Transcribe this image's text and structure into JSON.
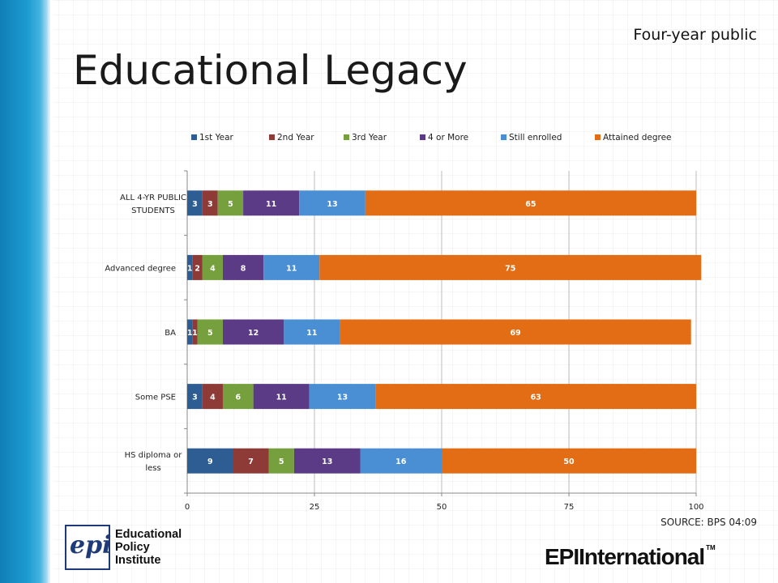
{
  "slide": {
    "title": "Educational Legacy",
    "subtitle": "Four-year public",
    "source": "SOURCE: BPS 04:09",
    "logo_left": {
      "mark_text": "epi",
      "lines": [
        "Educational",
        "Policy",
        "Institute"
      ]
    },
    "logo_right": {
      "epi": "EPI",
      "international": "International",
      "tm": "TM"
    },
    "colors": {
      "stripe": "#1d9bd1",
      "logo_blue": "#1e3a78"
    }
  },
  "chart_data": {
    "type": "bar",
    "orientation": "horizontal",
    "stacked": true,
    "categories": [
      "ALL 4-YR PUBLIC STUDENTS",
      "Advanced degree",
      "BA",
      "Some PSE",
      "HS diploma or less"
    ],
    "series": [
      {
        "name": "1st Year",
        "color": "#2e5d94",
        "values": [
          3,
          1,
          1,
          3,
          9
        ]
      },
      {
        "name": "2nd Year",
        "color": "#8e3a36",
        "values": [
          3,
          2,
          1,
          4,
          7
        ]
      },
      {
        "name": "3rd Year",
        "color": "#76a03e",
        "values": [
          5,
          4,
          5,
          6,
          5
        ]
      },
      {
        "name": "4 or More",
        "color": "#5b3b86",
        "values": [
          11,
          8,
          12,
          11,
          13
        ]
      },
      {
        "name": "Still enrolled",
        "color": "#4a8fd3",
        "values": [
          13,
          11,
          11,
          13,
          16
        ]
      },
      {
        "name": "Attained degree",
        "color": "#e26d14",
        "values": [
          65,
          75,
          69,
          63,
          50
        ]
      }
    ],
    "xlim": [
      0,
      100
    ],
    "xticks": [
      0,
      25,
      50,
      75,
      100
    ],
    "grid": true,
    "legend_position": "top"
  }
}
